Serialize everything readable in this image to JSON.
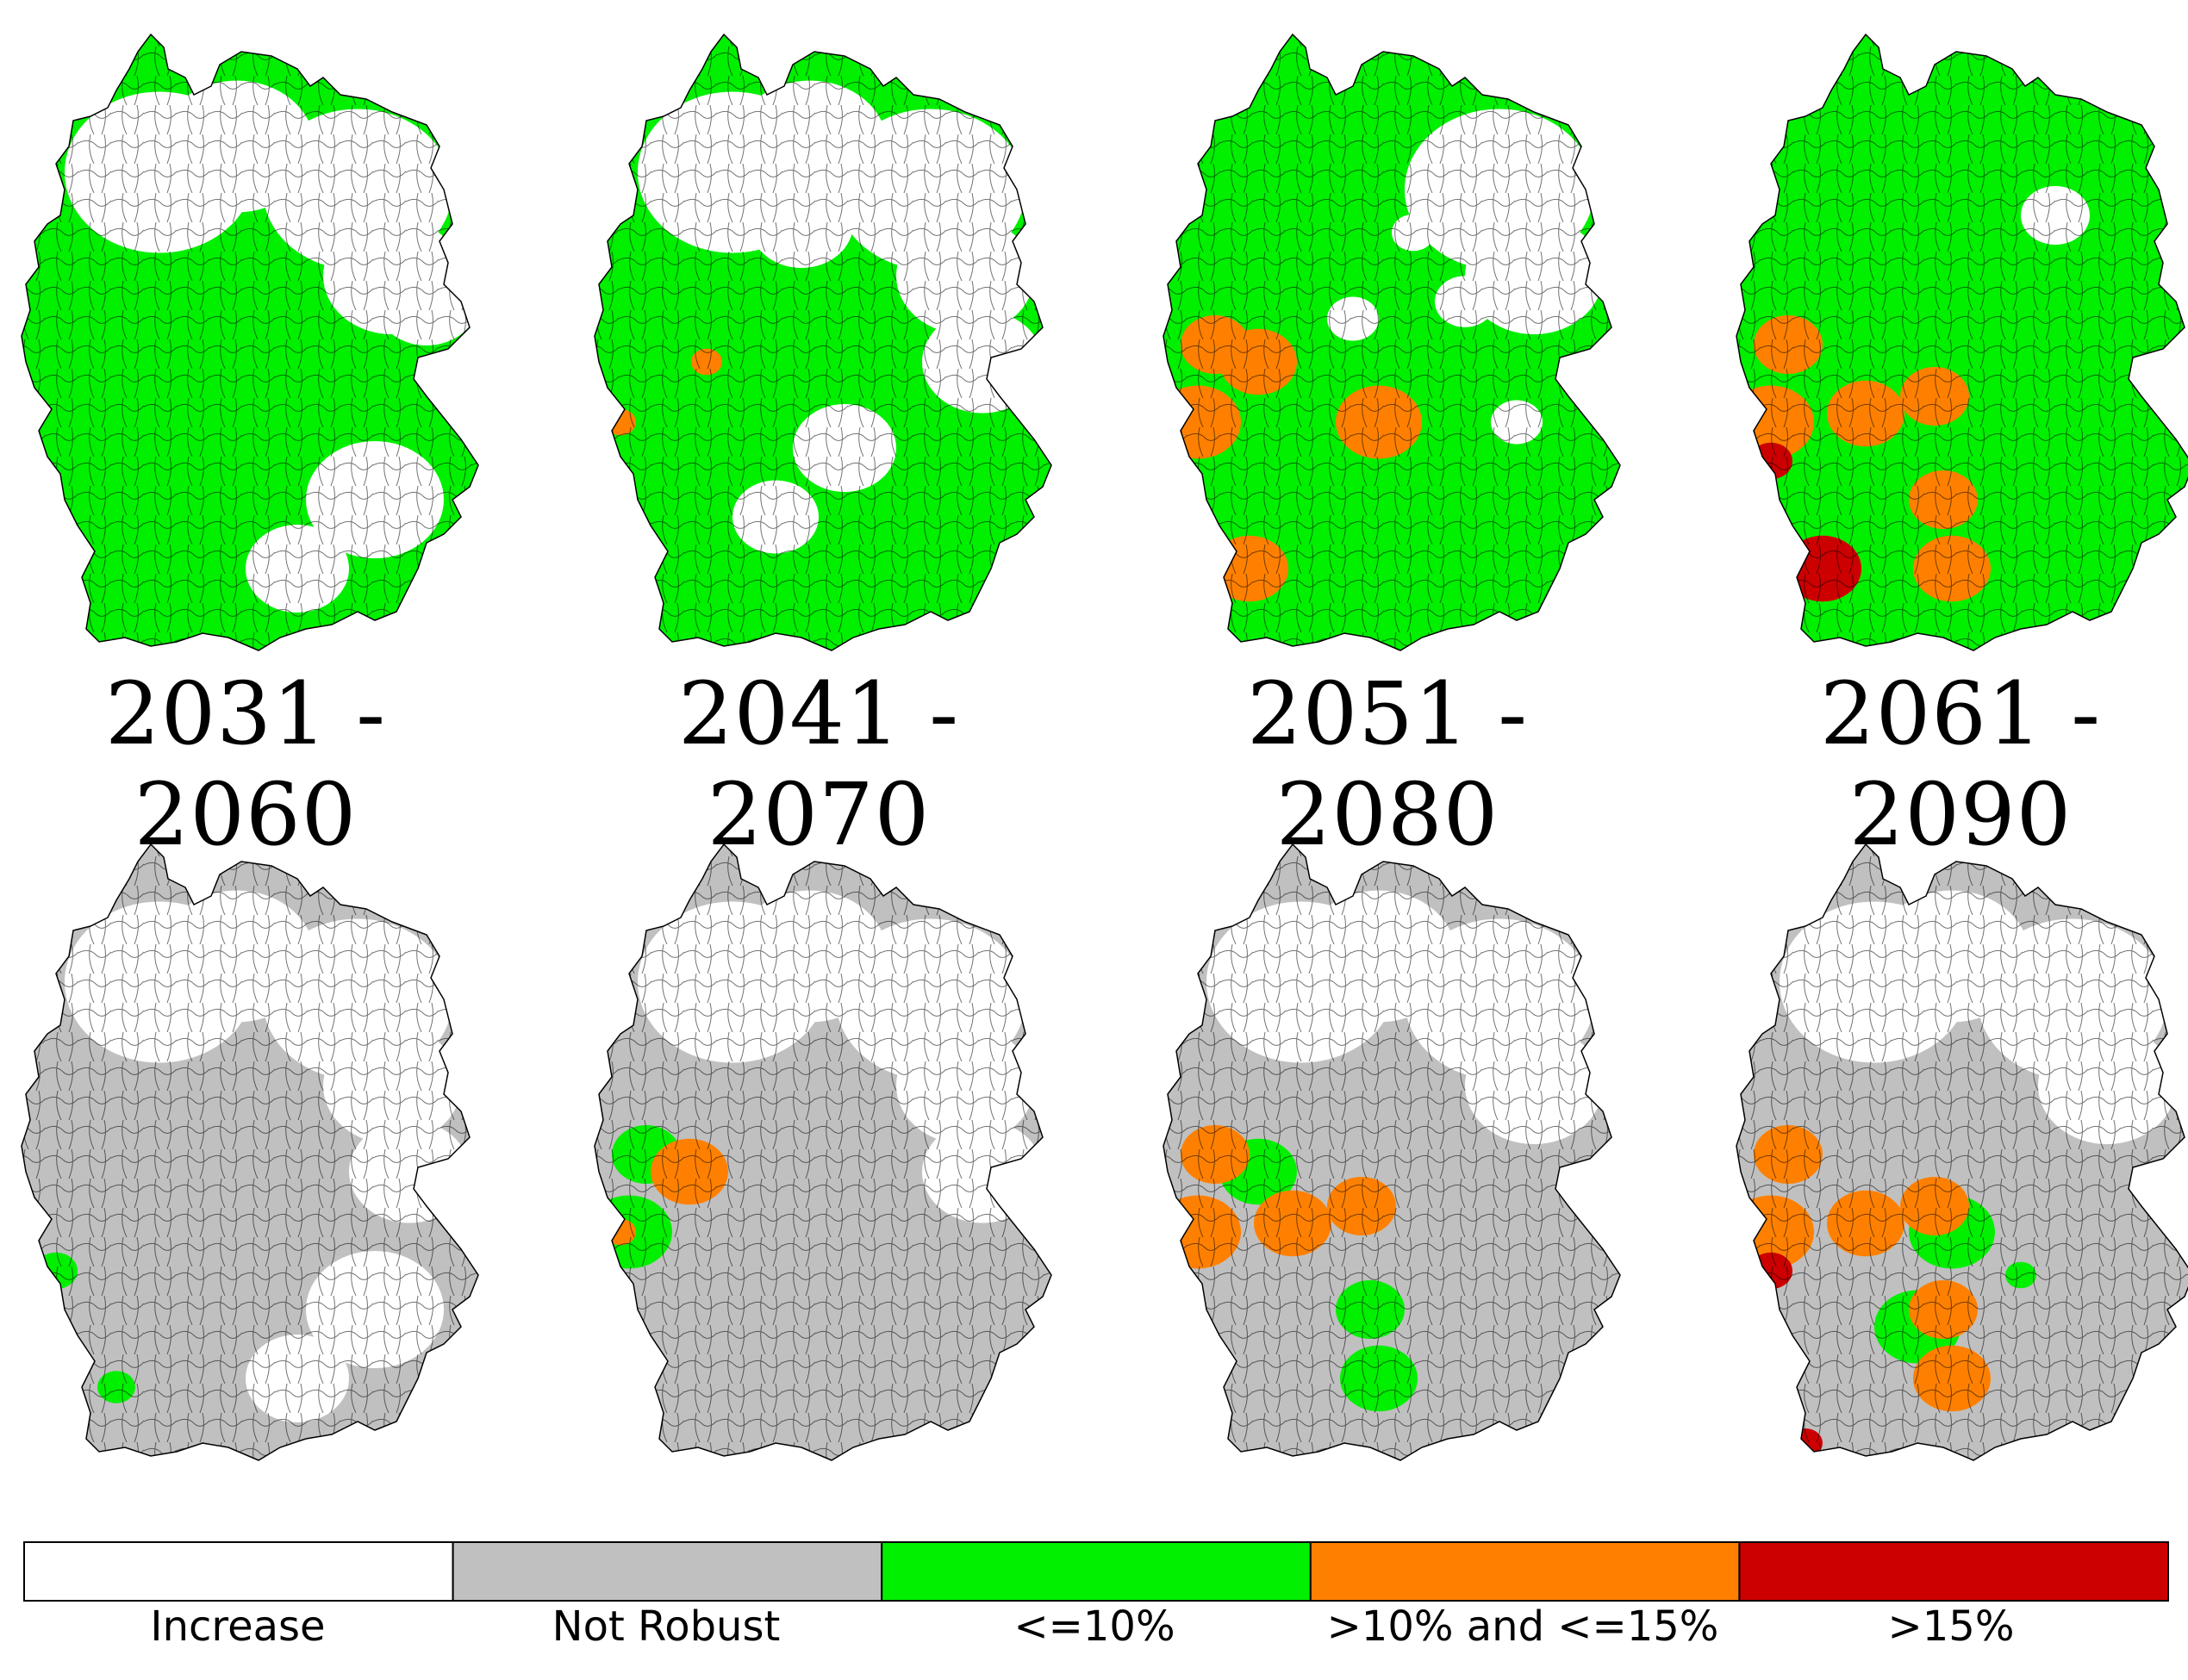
{
  "periods": [
    "2031 - 2060",
    "2041 - 2070",
    "2051 - 2080",
    "2061 - 2090"
  ],
  "legend": [
    {
      "label": "Increase",
      "color": "#ffffff"
    },
    {
      "label": "Not Robust",
      "color": "#c0c0c0"
    },
    {
      "label": "<=10%",
      "color": "#00f000"
    },
    {
      "label": ">10% and <=15%",
      "color": "#ff8000"
    },
    {
      "label": ">15%",
      "color": "#cc0000"
    }
  ],
  "map_rows": [
    {
      "maps": [
        {
          "base": "green",
          "white_regions": [
            "north",
            "northeast",
            "east-border",
            "south-east"
          ],
          "orange_regions": [],
          "red_regions": []
        },
        {
          "base": "green",
          "white_regions": [
            "north-center",
            "north",
            "northeast",
            "east",
            "center-east",
            "south-center"
          ],
          "orange_regions": [
            "west-small",
            "west-edge"
          ],
          "red_regions": []
        },
        {
          "base": "green",
          "white_regions": [
            "northeast",
            "east-spots",
            "center-spots"
          ],
          "orange_regions": [
            "west",
            "west-center",
            "center",
            "southwest"
          ],
          "red_regions": []
        },
        {
          "base": "green",
          "white_regions": [
            "north-east-small"
          ],
          "orange_regions": [
            "west",
            "center-west",
            "southwest",
            "south"
          ],
          "red_regions": [
            "west-spot",
            "southwest"
          ]
        }
      ]
    },
    {
      "maps": [
        {
          "base": "gray",
          "white_regions": [
            "north",
            "northeast",
            "east",
            "south-east"
          ],
          "green_regions": [
            "west-spot",
            "southwest-spot"
          ],
          "orange_regions": [],
          "red_regions": []
        },
        {
          "base": "gray",
          "white_regions": [
            "north",
            "northeast",
            "east"
          ],
          "green_regions": [
            "west"
          ],
          "orange_regions": [
            "west-edge",
            "west-center"
          ],
          "red_regions": []
        },
        {
          "base": "gray",
          "white_regions": [
            "north",
            "northeast"
          ],
          "green_regions": [
            "west-center",
            "south"
          ],
          "orange_regions": [
            "west",
            "center-west"
          ],
          "red_regions": []
        },
        {
          "base": "gray",
          "white_regions": [
            "north",
            "northeast"
          ],
          "green_regions": [
            "center",
            "east-spot",
            "south-center"
          ],
          "orange_regions": [
            "west",
            "center-west",
            "south"
          ],
          "red_regions": [
            "west-spot",
            "southwest-tip"
          ]
        }
      ]
    }
  ]
}
